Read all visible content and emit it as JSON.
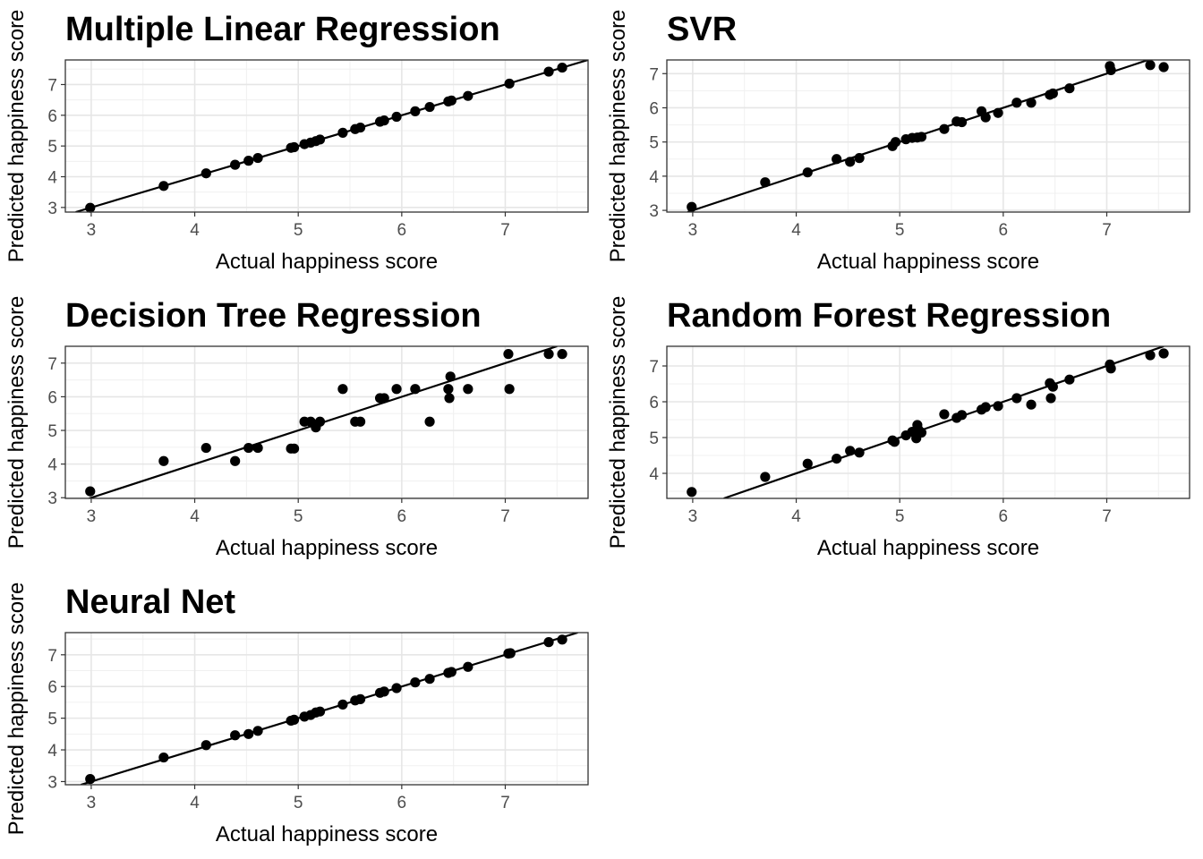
{
  "chart_data": [
    {
      "type": "scatter",
      "title": "Multiple Linear Regression",
      "xlabel": "Actual happiness score",
      "ylabel": "Predicted happiness score",
      "xlim": [
        2.75,
        7.8
      ],
      "ylim": [
        2.85,
        7.8
      ],
      "x_ticks": [
        3,
        4,
        5,
        6,
        7
      ],
      "y_ticks": [
        3,
        4,
        5,
        6,
        7
      ],
      "grid": true,
      "reference_line": "identity",
      "points": [
        [
          2.99,
          2.99
        ],
        [
          3.7,
          3.7
        ],
        [
          4.11,
          4.11
        ],
        [
          4.39,
          4.39
        ],
        [
          4.52,
          4.52
        ],
        [
          4.61,
          4.61
        ],
        [
          4.93,
          4.94
        ],
        [
          4.96,
          4.96
        ],
        [
          5.06,
          5.06
        ],
        [
          5.12,
          5.11
        ],
        [
          5.17,
          5.16
        ],
        [
          5.21,
          5.21
        ],
        [
          5.43,
          5.43
        ],
        [
          5.55,
          5.55
        ],
        [
          5.6,
          5.6
        ],
        [
          5.79,
          5.79
        ],
        [
          5.83,
          5.83
        ],
        [
          5.95,
          5.95
        ],
        [
          6.13,
          6.13
        ],
        [
          6.27,
          6.27
        ],
        [
          6.45,
          6.45
        ],
        [
          6.48,
          6.48
        ],
        [
          6.64,
          6.63
        ],
        [
          7.04,
          7.03
        ],
        [
          7.42,
          7.42
        ],
        [
          7.55,
          7.55
        ]
      ]
    },
    {
      "type": "scatter",
      "title": "SVR",
      "xlabel": "Actual happiness score",
      "ylabel": "Predicted happiness score",
      "xlim": [
        2.75,
        7.8
      ],
      "ylim": [
        2.95,
        7.4
      ],
      "x_ticks": [
        3,
        4,
        5,
        6,
        7
      ],
      "y_ticks": [
        3,
        4,
        5,
        6,
        7
      ],
      "grid": true,
      "reference_line": "identity",
      "points": [
        [
          2.99,
          3.1
        ],
        [
          3.7,
          3.82
        ],
        [
          4.11,
          4.11
        ],
        [
          4.39,
          4.5
        ],
        [
          4.52,
          4.42
        ],
        [
          4.61,
          4.53
        ],
        [
          4.93,
          4.88
        ],
        [
          4.96,
          5.0
        ],
        [
          5.06,
          5.08
        ],
        [
          5.12,
          5.12
        ],
        [
          5.17,
          5.13
        ],
        [
          5.21,
          5.15
        ],
        [
          5.43,
          5.38
        ],
        [
          5.55,
          5.6
        ],
        [
          5.6,
          5.58
        ],
        [
          5.79,
          5.9
        ],
        [
          5.83,
          5.72
        ],
        [
          5.95,
          5.85
        ],
        [
          6.13,
          6.15
        ],
        [
          6.27,
          6.15
        ],
        [
          6.45,
          6.38
        ],
        [
          6.48,
          6.42
        ],
        [
          6.64,
          6.57
        ],
        [
          7.03,
          7.22
        ],
        [
          7.04,
          7.1
        ],
        [
          7.42,
          7.25
        ],
        [
          7.55,
          7.19
        ]
      ]
    },
    {
      "type": "scatter",
      "title": "Decision Tree Regression",
      "xlabel": "Actual happiness score",
      "ylabel": "Predicted happiness score",
      "xlim": [
        2.75,
        7.8
      ],
      "ylim": [
        2.98,
        7.5
      ],
      "x_ticks": [
        3,
        4,
        5,
        6,
        7
      ],
      "y_ticks": [
        3,
        4,
        5,
        6,
        7
      ],
      "grid": true,
      "reference_line": "identity",
      "points": [
        [
          2.99,
          3.19
        ],
        [
          3.7,
          4.09
        ],
        [
          4.11,
          4.48
        ],
        [
          4.39,
          4.09
        ],
        [
          4.52,
          4.48
        ],
        [
          4.61,
          4.48
        ],
        [
          4.93,
          4.46
        ],
        [
          4.96,
          4.46
        ],
        [
          5.06,
          5.26
        ],
        [
          5.12,
          5.26
        ],
        [
          5.17,
          5.09
        ],
        [
          5.21,
          5.26
        ],
        [
          5.43,
          6.23
        ],
        [
          5.55,
          5.26
        ],
        [
          5.6,
          5.26
        ],
        [
          5.79,
          5.96
        ],
        [
          5.83,
          5.96
        ],
        [
          5.95,
          6.23
        ],
        [
          6.13,
          6.23
        ],
        [
          6.27,
          5.26
        ],
        [
          6.45,
          6.23
        ],
        [
          6.46,
          5.96
        ],
        [
          6.47,
          6.6
        ],
        [
          6.64,
          6.23
        ],
        [
          7.03,
          7.27
        ],
        [
          7.04,
          6.23
        ],
        [
          7.42,
          7.27
        ],
        [
          7.55,
          7.27
        ]
      ]
    },
    {
      "type": "scatter",
      "title": "Random Forest Regression",
      "xlabel": "Actual happiness score",
      "ylabel": "Predicted happiness score",
      "xlim": [
        2.75,
        7.8
      ],
      "ylim": [
        3.3,
        7.55
      ],
      "x_ticks": [
        3,
        4,
        5,
        6,
        7
      ],
      "y_ticks": [
        4,
        5,
        6,
        7
      ],
      "grid": true,
      "reference_line": "identity",
      "points": [
        [
          2.99,
          3.48
        ],
        [
          3.7,
          3.9
        ],
        [
          4.11,
          4.27
        ],
        [
          4.39,
          4.41
        ],
        [
          4.52,
          4.63
        ],
        [
          4.61,
          4.58
        ],
        [
          4.93,
          4.92
        ],
        [
          4.95,
          4.88
        ],
        [
          5.06,
          5.06
        ],
        [
          5.12,
          5.16
        ],
        [
          5.16,
          4.98
        ],
        [
          5.17,
          5.35
        ],
        [
          5.18,
          5.22
        ],
        [
          5.21,
          5.14
        ],
        [
          5.43,
          5.65
        ],
        [
          5.55,
          5.55
        ],
        [
          5.6,
          5.63
        ],
        [
          5.79,
          5.78
        ],
        [
          5.83,
          5.85
        ],
        [
          5.95,
          5.88
        ],
        [
          6.13,
          6.1
        ],
        [
          6.27,
          5.92
        ],
        [
          6.45,
          6.52
        ],
        [
          6.46,
          6.1
        ],
        [
          6.48,
          6.42
        ],
        [
          6.64,
          6.62
        ],
        [
          7.03,
          7.04
        ],
        [
          7.04,
          6.93
        ],
        [
          7.42,
          7.3
        ],
        [
          7.55,
          7.35
        ]
      ]
    },
    {
      "type": "scatter",
      "title": "Neural Net",
      "xlabel": "Actual happiness score",
      "ylabel": "Predicted happiness score",
      "xlim": [
        2.75,
        7.8
      ],
      "ylim": [
        2.9,
        7.7
      ],
      "x_ticks": [
        3,
        4,
        5,
        6,
        7
      ],
      "y_ticks": [
        3,
        4,
        5,
        6,
        7
      ],
      "grid": true,
      "reference_line": "identity",
      "points": [
        [
          2.99,
          3.08
        ],
        [
          3.7,
          3.76
        ],
        [
          4.11,
          4.15
        ],
        [
          4.39,
          4.46
        ],
        [
          4.52,
          4.5
        ],
        [
          4.61,
          4.6
        ],
        [
          4.93,
          4.92
        ],
        [
          4.96,
          4.95
        ],
        [
          5.06,
          5.05
        ],
        [
          5.12,
          5.1
        ],
        [
          5.17,
          5.18
        ],
        [
          5.21,
          5.21
        ],
        [
          5.43,
          5.43
        ],
        [
          5.55,
          5.56
        ],
        [
          5.6,
          5.6
        ],
        [
          5.79,
          5.8
        ],
        [
          5.83,
          5.84
        ],
        [
          5.95,
          5.95
        ],
        [
          6.13,
          6.13
        ],
        [
          6.27,
          6.24
        ],
        [
          6.45,
          6.43
        ],
        [
          6.48,
          6.46
        ],
        [
          6.64,
          6.62
        ],
        [
          7.03,
          7.04
        ],
        [
          7.05,
          7.05
        ],
        [
          7.42,
          7.4
        ],
        [
          7.55,
          7.48
        ]
      ]
    }
  ]
}
